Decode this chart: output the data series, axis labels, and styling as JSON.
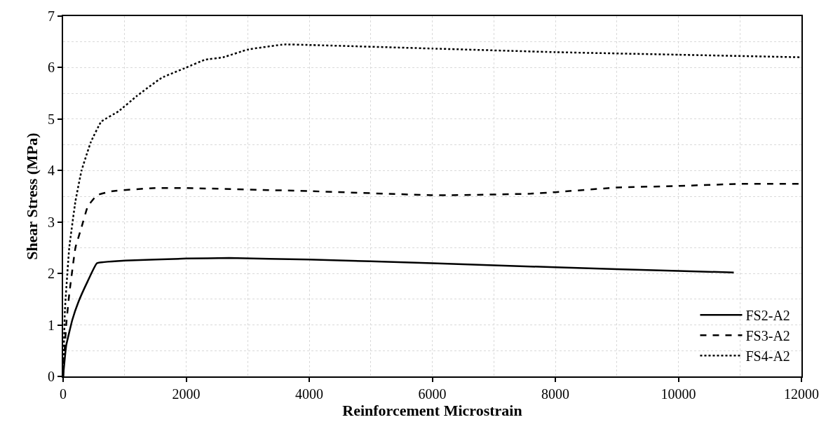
{
  "chart_data": {
    "type": "line",
    "xlabel": "Reinforcement Microstrain",
    "ylabel": "Shear Stress (MPa)",
    "xlim": [
      0,
      12000
    ],
    "xticks": [
      0,
      2000,
      4000,
      6000,
      8000,
      10000,
      12000
    ],
    "ylim": [
      0,
      7
    ],
    "yticks": [
      0,
      1,
      2,
      3,
      4,
      5,
      6,
      7
    ],
    "grid": true,
    "legend": "bottom right",
    "marker": "none",
    "series": [
      {
        "name": "FS2-A2",
        "color": "#000000",
        "line_style": "solid",
        "x": [
          0,
          50,
          150,
          250,
          400,
          550,
          1000,
          2000,
          2700,
          4000,
          6000,
          8000,
          10000,
          10900
        ],
        "values": [
          0,
          0.6,
          1.1,
          1.45,
          1.85,
          2.2,
          2.25,
          2.29,
          2.3,
          2.27,
          2.2,
          2.12,
          2.05,
          2.02
        ]
      },
      {
        "name": "FS3-A2",
        "color": "#000000",
        "line_style": "dashed",
        "x": [
          0,
          50,
          100,
          200,
          300,
          400,
          550,
          800,
          1500,
          2000,
          4000,
          6000,
          6300,
          7600,
          8000,
          9000,
          10000,
          11000,
          12000
        ],
        "values": [
          0,
          1.0,
          1.6,
          2.5,
          2.9,
          3.3,
          3.52,
          3.6,
          3.66,
          3.66,
          3.6,
          3.52,
          3.52,
          3.55,
          3.58,
          3.67,
          3.7,
          3.74,
          3.74
        ]
      },
      {
        "name": "FS4-A2",
        "color": "#000000",
        "line_style": "dotted",
        "x": [
          0,
          30,
          100,
          200,
          300,
          450,
          620,
          900,
          1200,
          1600,
          2000,
          2300,
          2600,
          3000,
          3600,
          4000,
          6000,
          8000,
          10000,
          12000
        ],
        "values": [
          0,
          1.3,
          2.5,
          3.4,
          4.0,
          4.55,
          4.95,
          5.15,
          5.45,
          5.8,
          6.0,
          6.15,
          6.2,
          6.35,
          6.45,
          6.44,
          6.37,
          6.3,
          6.25,
          6.2
        ]
      }
    ]
  }
}
